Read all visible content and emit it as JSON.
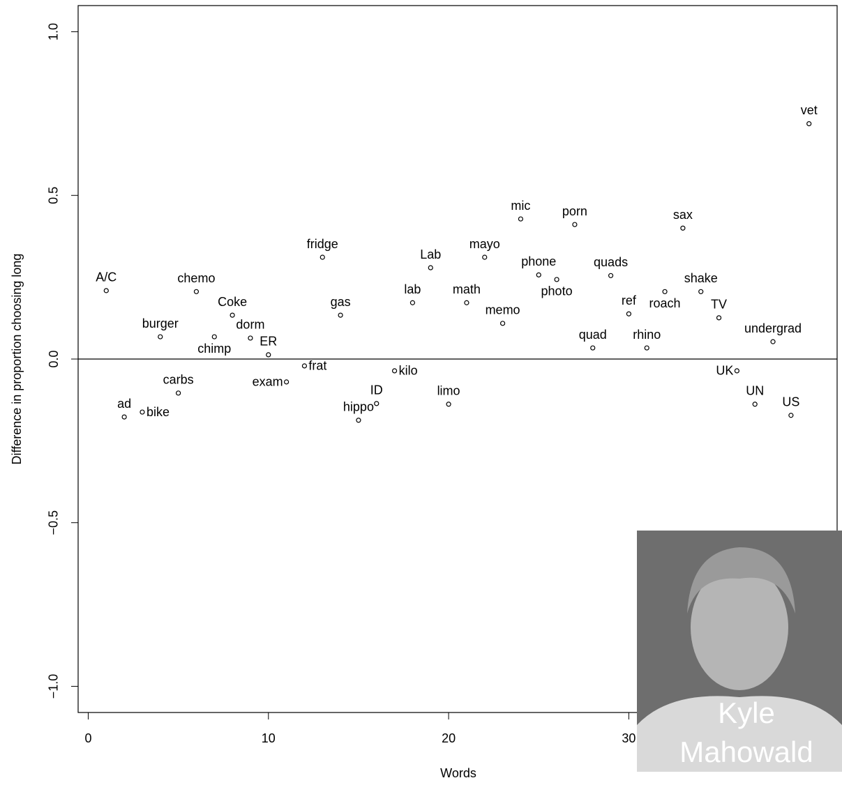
{
  "chart_data": {
    "type": "scatter",
    "xlabel": "Words",
    "ylabel": "Difference in proportion choosing long",
    "x": [
      1,
      2,
      3,
      4,
      5,
      6,
      7,
      8,
      9,
      10,
      11,
      12,
      13,
      14,
      15,
      16,
      17,
      18,
      19,
      20,
      21,
      22,
      23,
      24,
      25,
      26,
      27,
      28,
      29,
      30,
      31,
      32,
      33,
      34,
      35,
      36,
      37,
      38,
      39,
      40
    ],
    "values": [
      0.209,
      -0.177,
      -0.162,
      0.068,
      -0.104,
      0.206,
      0.068,
      0.134,
      0.064,
      0.013,
      -0.07,
      -0.021,
      0.311,
      0.134,
      -0.187,
      -0.136,
      -0.036,
      0.172,
      0.279,
      -0.138,
      0.172,
      0.311,
      0.109,
      0.428,
      0.257,
      0.243,
      0.411,
      0.034,
      0.255,
      0.138,
      0.034,
      0.206,
      0.4,
      0.206,
      0.126,
      -0.036,
      -0.138,
      0.053,
      -0.172,
      0.719
    ],
    "point_labels": [
      "A/C",
      "ad",
      "bike",
      "burger",
      "carbs",
      "chemo",
      "chimp",
      "Coke",
      "dorm",
      "ER",
      "exam",
      "frat",
      "fridge",
      "gas",
      "hippo",
      "ID",
      "kilo",
      "lab",
      "Lab",
      "limo",
      "math",
      "mayo",
      "memo",
      "mic",
      "phone",
      "photo",
      "porn",
      "quad",
      "quads",
      "ref",
      "rhino",
      "roach",
      "sax",
      "shake",
      "TV",
      "UK",
      "UN",
      "undergrad",
      "US",
      "vet"
    ],
    "xlim": [
      -0.56,
      41.56
    ],
    "ylim": [
      -1.08,
      1.08
    ],
    "xticks": [
      0,
      10,
      20,
      30
    ],
    "yticks": [
      {
        "value": -1,
        "label": "−1.0"
      },
      {
        "value": -0.5,
        "label": "−0.5"
      },
      {
        "value": 0,
        "label": "0.0"
      },
      {
        "value": 0.5,
        "label": "0.5"
      },
      {
        "value": 1,
        "label": "1.0"
      }
    ],
    "reference_line": 0,
    "color": "#000000"
  },
  "photo_caption": [
    "Kyle",
    "Mahowald"
  ]
}
